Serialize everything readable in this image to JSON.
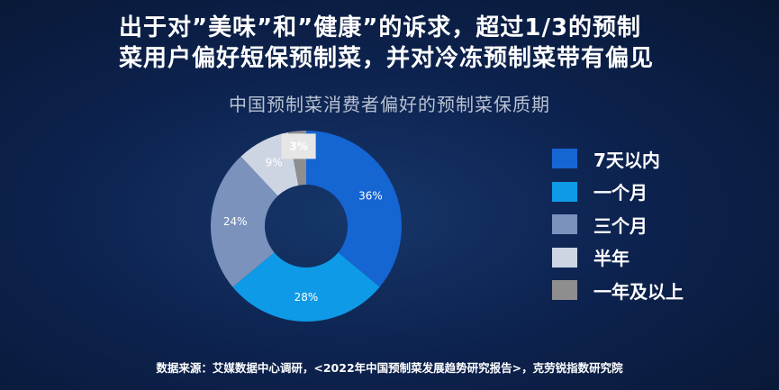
{
  "headline": {
    "line1": "出于对”美味”和”健康”的诉求，超过1/3的预制",
    "line2": "菜用户偏好短保预制菜，并对冷冻预制菜带有偏见"
  },
  "chart_data": {
    "type": "pie",
    "title": "中国预制菜消费者偏好的预制菜保质期",
    "donut": true,
    "start": "top, clockwise",
    "legend_position": "right",
    "slices": [
      {
        "name": "7天以内",
        "value": 36,
        "label": "36%",
        "color": "#1565d2"
      },
      {
        "name": "一个月",
        "value": 28,
        "label": "28%",
        "color": "#0e9ae6"
      },
      {
        "name": "三个月",
        "value": 24,
        "label": "24%",
        "color": "#7b92bd"
      },
      {
        "name": "半年",
        "value": 9,
        "label": "9%",
        "color": "#cdd5e3",
        "label_color": "#1a9be0"
      },
      {
        "name": "一年及以上",
        "value": 3,
        "label": "3%",
        "color": "#8e8e8e",
        "label_color": "#222222",
        "label_highlight": "#e6e6e6"
      }
    ]
  },
  "source": "数据来源：艾媒数据中心调研，<2022年中国预制菜发展趋势研究报告>，克劳锐指数研究院"
}
